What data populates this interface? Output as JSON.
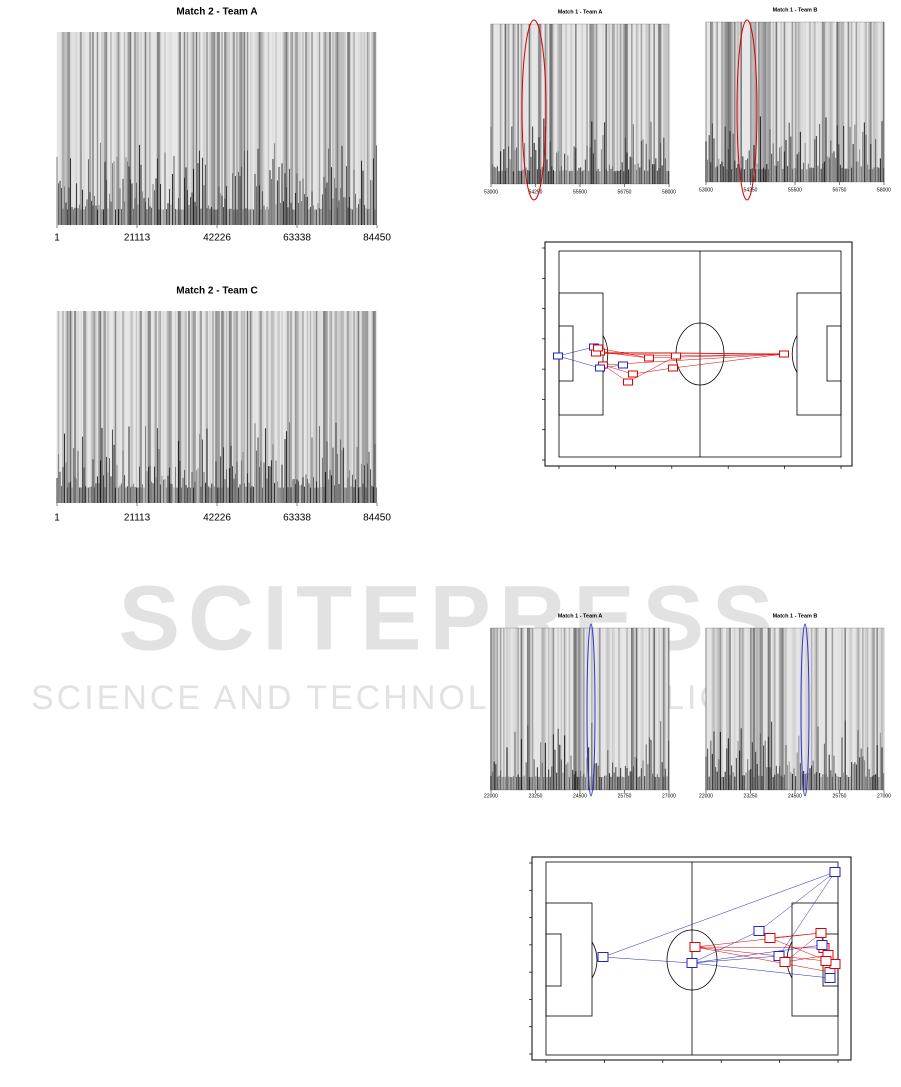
{
  "panels": [
    {
      "title": "Match 2  - Team A",
      "x_ticks": [
        1,
        21113,
        42226,
        63338,
        84450
      ]
    },
    {
      "title": "Match 2  - Team C",
      "x_ticks": [
        1,
        21113,
        42226,
        63338,
        84450
      ]
    },
    {
      "title": "Match 1  - Team A",
      "x_ticks": [
        53000,
        54250,
        55500,
        56750,
        58000
      ]
    },
    {
      "title": "Match 1  - Team B",
      "x_ticks": [
        53000,
        54250,
        55500,
        56750,
        58000
      ]
    },
    {
      "title": "Match 1  - Team A",
      "x_ticks": [
        22000,
        23250,
        24500,
        25750,
        27000
      ]
    },
    {
      "title": "Match 1  - Team B",
      "x_ticks": [
        22000,
        23250,
        24500,
        25750,
        27000
      ]
    }
  ],
  "watermark": {
    "line1": "SCITEPRESS",
    "line2": "SCIENCE AND TECHNOLOGY PUBLICATIONS"
  }
}
